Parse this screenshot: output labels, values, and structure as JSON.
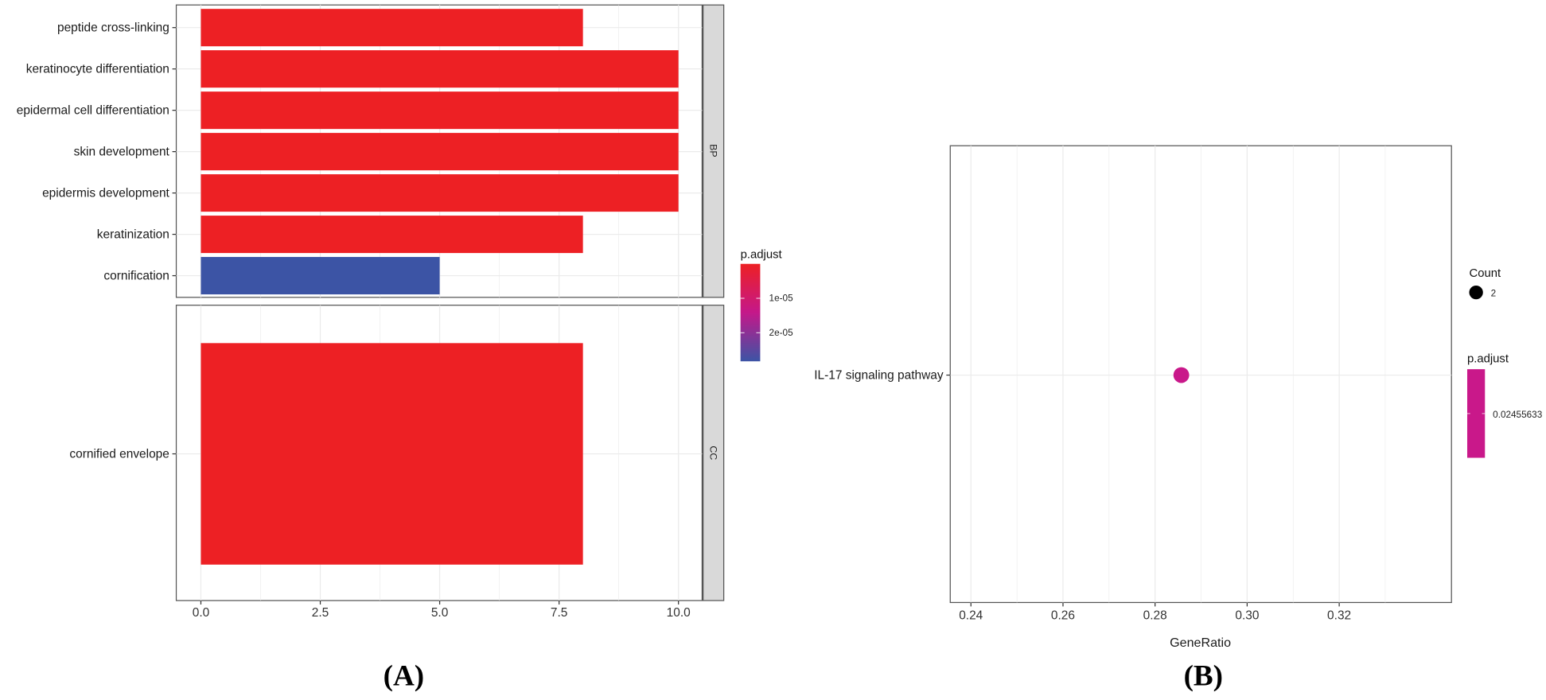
{
  "chart_data": [
    {
      "type": "bar",
      "orientation": "horizontal",
      "panel_label": "(A)",
      "facets": [
        {
          "name": "BP",
          "categories": [
            "peptide cross-linking",
            "keratinocyte differentiation",
            "epidermal cell differentiation",
            "skin development",
            "epidermis development",
            "keratinization",
            "cornification"
          ],
          "values": [
            8,
            10,
            10,
            10,
            10,
            8,
            5
          ],
          "colors": [
            "#ED2024",
            "#ED2024",
            "#ED2024",
            "#ED2024",
            "#ED2024",
            "#ED2024",
            "#3C54A5"
          ]
        },
        {
          "name": "CC",
          "categories": [
            "cornified envelope"
          ],
          "values": [
            8
          ],
          "colors": [
            "#ED2024"
          ]
        }
      ],
      "xlim": [
        -0.5,
        10.5
      ],
      "xticks": [
        "0.0",
        "2.5",
        "5.0",
        "7.5",
        "10.0"
      ],
      "xtick_values": [
        0,
        2.5,
        5,
        7.5,
        10
      ],
      "legend": {
        "title": "p.adjust",
        "labels": [
          "1e-05",
          "2e-05"
        ],
        "colors": [
          "#ED2024",
          "#C4188A",
          "#3C54A5"
        ],
        "placement": "right"
      }
    },
    {
      "type": "scatter",
      "panel_label": "(B)",
      "xlabel": "GeneRatio",
      "categories": [
        "IL-17 signaling pathway"
      ],
      "points": [
        {
          "category": "IL-17 signaling pathway",
          "x": 0.2857,
          "count": 2,
          "p_adjust": 0.02455633,
          "color": "#C9188A"
        }
      ],
      "xlim": [
        0.2357,
        0.3357
      ],
      "xticks": [
        "0.24",
        "0.26",
        "0.28",
        "0.30",
        "0.32"
      ],
      "xtick_values": [
        0.24,
        0.26,
        0.28,
        0.3,
        0.32
      ],
      "legend": {
        "count_title": "Count",
        "count_label": "2",
        "padjust_title": "p.adjust",
        "padjust_label": "0.02455633",
        "color": "#C9188A",
        "placement": "right"
      }
    }
  ]
}
